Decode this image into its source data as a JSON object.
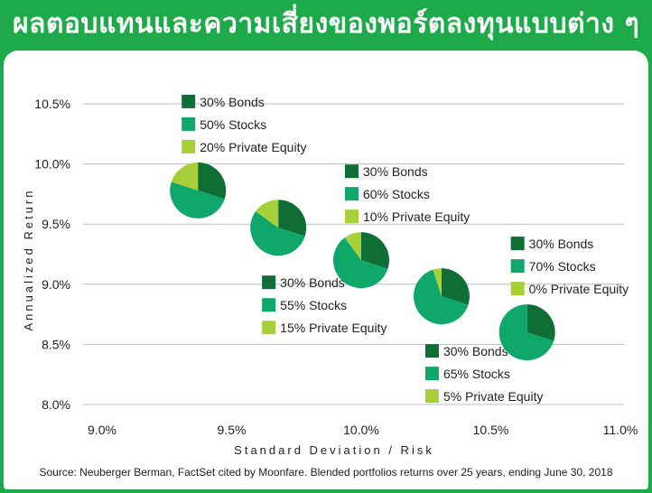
{
  "header": {
    "title": "ผลตอบแทนและความเสี่ยงของพอร์ตลงทุนแบบต่าง ๆ"
  },
  "footer": {
    "source": "Source: Neuberger Berman, FactSet cited by Moonfare. Blended portfolios returns over 25 years, ending June 30, 2018"
  },
  "colors": {
    "header_bg": "#1eaa4a",
    "bonds": "#0e6e36",
    "stocks": "#0fa86a",
    "private_equity": "#a6cf3a",
    "grid": "#bbbbbb"
  },
  "chart_data": {
    "type": "scatter",
    "title": "",
    "xlabel": "Standard Deviation / Risk",
    "ylabel": "Annualized Return",
    "xlim": [
      9.0,
      11.0
    ],
    "ylim": [
      8.0,
      10.5
    ],
    "x_ticks": [
      "9.0%",
      "9.5%",
      "10.0%",
      "10.5%",
      "11.0%"
    ],
    "y_ticks": [
      "8.0%",
      "8.5%",
      "9.0%",
      "9.5%",
      "10.0%",
      "10.5%"
    ],
    "y_grid": true,
    "marker": "pie",
    "slice_order": [
      "Bonds",
      "Stocks",
      "Private Equity"
    ],
    "points": [
      {
        "x": 9.37,
        "y": 9.78,
        "bonds": 30,
        "stocks": 50,
        "private_equity": 20,
        "labels": [
          "30% Bonds",
          "50% Stocks",
          "20% Private Equity"
        ],
        "legend_position": "above"
      },
      {
        "x": 9.68,
        "y": 9.47,
        "bonds": 30,
        "stocks": 55,
        "private_equity": 15,
        "labels": [
          "30% Bonds",
          "55% Stocks",
          "15% Private Equity"
        ],
        "legend_position": "below"
      },
      {
        "x": 10.0,
        "y": 9.2,
        "bonds": 30,
        "stocks": 60,
        "private_equity": 10,
        "labels": [
          "30% Bonds",
          "60% Stocks",
          "10% Private Equity"
        ],
        "legend_position": "above"
      },
      {
        "x": 10.31,
        "y": 8.9,
        "bonds": 30,
        "stocks": 65,
        "private_equity": 5,
        "labels": [
          "30% Bonds",
          "65% Stocks",
          "5% Private Equity"
        ],
        "legend_position": "below"
      },
      {
        "x": 10.64,
        "y": 8.6,
        "bonds": 30,
        "stocks": 70,
        "private_equity": 0,
        "labels": [
          "30% Bonds",
          "70% Stocks",
          "0% Private Equity"
        ],
        "legend_position": "above"
      }
    ]
  }
}
